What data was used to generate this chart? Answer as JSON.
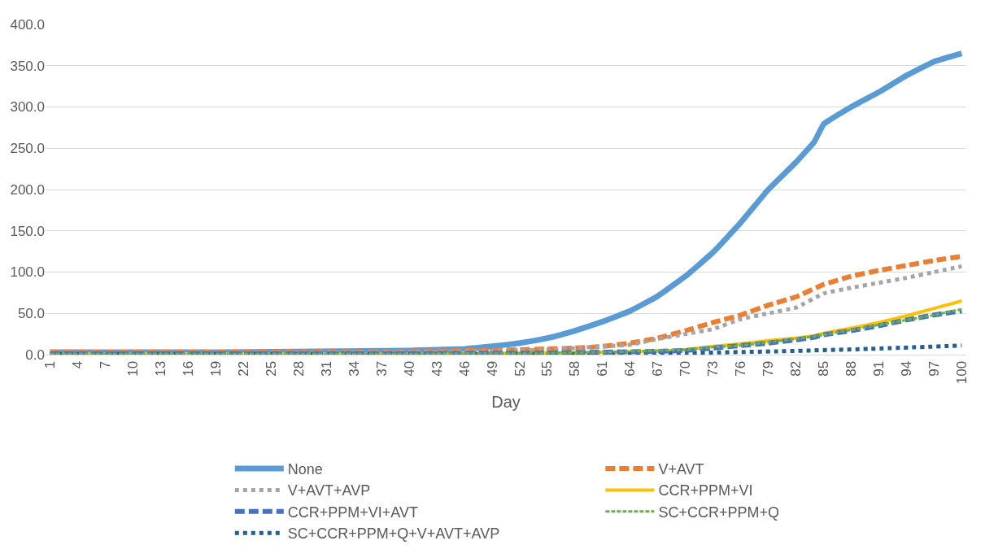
{
  "chart_data": {
    "type": "line",
    "xlabel": "Day",
    "xlim": [
      0.5,
      100.5
    ],
    "xticks": [
      1,
      4,
      7,
      10,
      13,
      16,
      19,
      22,
      25,
      28,
      31,
      34,
      37,
      40,
      43,
      46,
      49,
      52,
      55,
      58,
      61,
      64,
      67,
      70,
      73,
      76,
      79,
      82,
      85,
      88,
      91,
      94,
      97,
      100
    ],
    "ylim": [
      0,
      400
    ],
    "yticks": [
      {
        "value": 0,
        "label": "0.0"
      },
      {
        "value": 50,
        "label": "50.0"
      },
      {
        "value": 100,
        "label": "100.0"
      },
      {
        "value": 150,
        "label": "150.0"
      },
      {
        "value": 200,
        "label": "200.0"
      },
      {
        "value": 250,
        "label": "250.0"
      },
      {
        "value": 300,
        "label": "300.0"
      },
      {
        "value": 350,
        "label": "350.0"
      },
      {
        "value": 400,
        "label": "400.0"
      }
    ],
    "grid": "y",
    "legend": "bottom",
    "series": [
      {
        "name": "None",
        "color": "#5b9bd5",
        "line_style": "solid",
        "x": [
          1,
          10,
          20,
          30,
          40,
          46,
          49,
          52,
          55,
          58,
          61,
          64,
          67,
          70,
          73,
          76,
          79,
          82,
          84,
          85,
          88,
          91,
          94,
          97,
          100
        ],
        "values": [
          3,
          3,
          3,
          4,
          5,
          7,
          10,
          14,
          20,
          29,
          40,
          53,
          71,
          95,
          124,
          160,
          200,
          233,
          258,
          279,
          300,
          318,
          338,
          355,
          365
        ]
      },
      {
        "name": "V+AVT",
        "color": "#ed7d31",
        "line_style": "dashed",
        "x": [
          1,
          20,
          40,
          46,
          52,
          55,
          58,
          61,
          64,
          67,
          70,
          73,
          76,
          79,
          82,
          85,
          88,
          91,
          94,
          97,
          100
        ],
        "values": [
          3,
          3,
          4,
          5,
          6,
          7,
          8,
          10,
          14,
          20,
          29,
          39,
          48,
          60,
          70,
          85,
          95,
          102,
          108,
          114,
          119
        ]
      },
      {
        "name": "V+AVT+AVP",
        "color": "#a5a5a5",
        "line_style": "dotted",
        "x": [
          1,
          20,
          40,
          46,
          52,
          55,
          58,
          61,
          64,
          67,
          70,
          73,
          76,
          79,
          82,
          85,
          88,
          91,
          94,
          97,
          100
        ],
        "values": [
          2,
          2,
          3,
          4,
          5,
          6,
          8,
          10,
          12,
          19,
          25,
          31,
          43,
          50,
          57,
          74,
          81,
          87,
          93,
          100,
          107
        ]
      },
      {
        "name": "CCR+PPM+VI",
        "color": "#ffc000",
        "line_style": "solid",
        "x": [
          1,
          40,
          55,
          61,
          67,
          70,
          73,
          76,
          79,
          82,
          84,
          85,
          88,
          91,
          94,
          97,
          100
        ],
        "values": [
          1,
          1,
          2,
          3,
          4,
          6,
          10,
          13,
          17,
          20,
          23,
          26,
          32,
          39,
          47,
          56,
          65
        ]
      },
      {
        "name": "CCR+PPM+VI+AVT",
        "color": "#4472c4",
        "line_style": "dashed",
        "x": [
          1,
          40,
          55,
          61,
          67,
          70,
          73,
          76,
          79,
          82,
          84,
          85,
          88,
          91,
          94,
          97,
          100
        ],
        "values": [
          1,
          1,
          2,
          3,
          4,
          5,
          8,
          11,
          14,
          18,
          21,
          24,
          29,
          35,
          42,
          48,
          53
        ]
      },
      {
        "name": "SC+CCR+PPM+Q",
        "color": "#70ad47",
        "line_style": "dashed",
        "x": [
          1,
          40,
          55,
          61,
          67,
          70,
          73,
          76,
          79,
          82,
          84,
          85,
          88,
          91,
          94,
          97,
          100
        ],
        "values": [
          1,
          1,
          2,
          3,
          5,
          6,
          9,
          11,
          15,
          19,
          22,
          24,
          30,
          36,
          42,
          48,
          55
        ]
      },
      {
        "name": "SC+CCR+PPM+Q+V+AVT+AVP",
        "color": "#255e91",
        "line_style": "dotted",
        "x": [
          1,
          30,
          60,
          70,
          80,
          90,
          100
        ],
        "values": [
          1,
          1,
          1,
          2,
          4,
          7,
          11
        ]
      }
    ]
  }
}
